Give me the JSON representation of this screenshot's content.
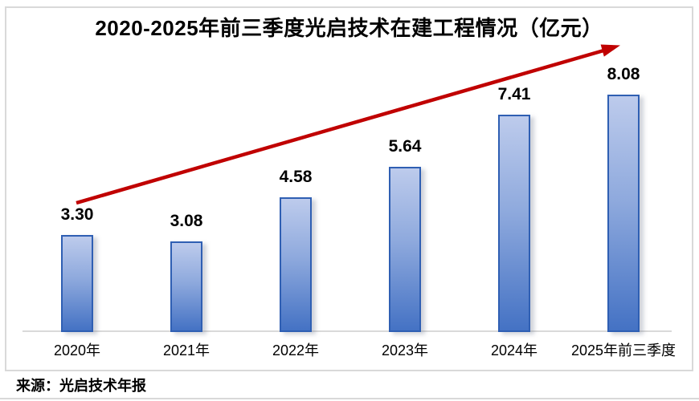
{
  "page": {
    "source_note": "来源：光启技术年报"
  },
  "chart_data": {
    "type": "bar",
    "title": "2020-2025年前三季度光启技术在建工程情况（亿元）",
    "unit": "亿元",
    "categories": [
      "2020年",
      "2021年",
      "2022年",
      "2023年",
      "2024年",
      "2025年前三季度"
    ],
    "values": [
      3.3,
      3.08,
      4.58,
      5.64,
      7.41,
      8.08
    ],
    "value_labels": [
      "3.30",
      "3.08",
      "4.58",
      "5.64",
      "7.41",
      "8.08"
    ],
    "xlabel": "",
    "ylabel": "",
    "ylim": [
      0,
      8.8
    ],
    "grid": false,
    "legend": false,
    "annotations": [
      {
        "type": "trend-arrow",
        "direction": "up-right",
        "color": "#c00000"
      }
    ],
    "colors": {
      "bar_fill_top": "#bdcbec",
      "bar_fill_bottom": "#4472c4",
      "bar_border": "#2f5fb3",
      "axis_line": "#d9d9d9",
      "frame_border": "#d9d9d9",
      "arrow": "#c00000",
      "text": "#000000"
    }
  }
}
